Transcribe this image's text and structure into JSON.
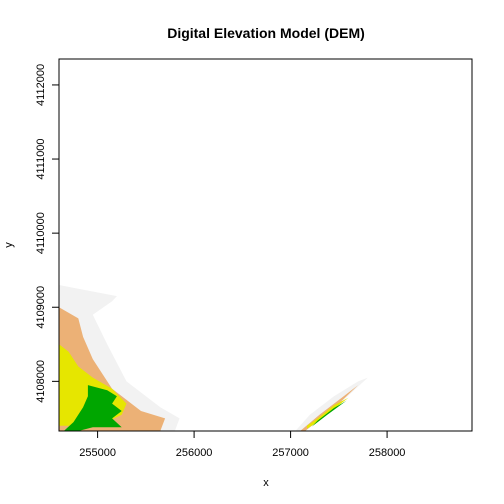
{
  "chart_data": {
    "type": "heatmap",
    "title": "Digital Elevation Model (DEM)",
    "xlabel": "x",
    "ylabel": "y",
    "xlim": [
      254600,
      258880
    ],
    "ylim": [
      4107330,
      4112350
    ],
    "x_ticks": [
      255000,
      256000,
      257000,
      258000
    ],
    "y_ticks": [
      4108000,
      4109000,
      4110000,
      4111000,
      4112000
    ],
    "x_tick_labels": [
      "255000",
      "256000",
      "257000",
      "258000"
    ],
    "y_tick_labels": [
      "4108000",
      "4109000",
      "4110000",
      "4111000",
      "4112000"
    ],
    "legend": "none",
    "elevation_classes": [
      {
        "level": 1,
        "color": "#f2f2f2"
      },
      {
        "level": 2,
        "color": "#ecb176"
      },
      {
        "level": 3,
        "color": "#e6e600"
      },
      {
        "level": 4,
        "color": "#00a600"
      }
    ],
    "regions": [
      {
        "level": 1,
        "polygon": [
          [
            254600,
            4109300
          ],
          [
            254800,
            4109250
          ],
          [
            255200,
            4109150
          ],
          [
            255150,
            4109080
          ],
          [
            254950,
            4108900
          ],
          [
            255100,
            4108500
          ],
          [
            255300,
            4108000
          ],
          [
            255650,
            4107650
          ],
          [
            255850,
            4107500
          ],
          [
            255800,
            4107330
          ],
          [
            254600,
            4107330
          ]
        ]
      },
      {
        "level": 2,
        "polygon": [
          [
            254600,
            4109000
          ],
          [
            254800,
            4108850
          ],
          [
            254850,
            4108600
          ],
          [
            254950,
            4108300
          ],
          [
            255150,
            4107900
          ],
          [
            255450,
            4107600
          ],
          [
            255700,
            4107500
          ],
          [
            255650,
            4107330
          ],
          [
            254600,
            4107330
          ]
        ]
      },
      {
        "level": 3,
        "polygon": [
          [
            254600,
            4108500
          ],
          [
            254700,
            4108400
          ],
          [
            254800,
            4108200
          ],
          [
            254950,
            4108050
          ],
          [
            255150,
            4107900
          ],
          [
            255300,
            4107700
          ],
          [
            255250,
            4107550
          ],
          [
            255050,
            4107420
          ],
          [
            254700,
            4107400
          ],
          [
            254600,
            4107400
          ]
        ]
      },
      {
        "level": 4,
        "polygon": [
          [
            254900,
            4107950
          ],
          [
            255100,
            4107880
          ],
          [
            255200,
            4107800
          ],
          [
            255150,
            4107700
          ],
          [
            255250,
            4107600
          ],
          [
            255150,
            4107500
          ],
          [
            255250,
            4107380
          ],
          [
            254950,
            4107380
          ],
          [
            254800,
            4107330
          ],
          [
            254650,
            4107330
          ],
          [
            254750,
            4107450
          ],
          [
            254850,
            4107650
          ],
          [
            254900,
            4107800
          ]
        ]
      },
      {
        "level": 1,
        "polygon": [
          [
            257130,
            4107330
          ],
          [
            257300,
            4107500
          ],
          [
            257550,
            4107750
          ],
          [
            257800,
            4108050
          ],
          [
            257700,
            4108000
          ],
          [
            257450,
            4107800
          ],
          [
            257200,
            4107550
          ],
          [
            257050,
            4107330
          ]
        ]
      },
      {
        "level": 2,
        "polygon": [
          [
            257150,
            4107330
          ],
          [
            257300,
            4107480
          ],
          [
            257500,
            4107700
          ],
          [
            257700,
            4107950
          ],
          [
            257550,
            4107800
          ],
          [
            257300,
            4107550
          ],
          [
            257100,
            4107330
          ]
        ]
      },
      {
        "level": 3,
        "polygon": [
          [
            257170,
            4107360
          ],
          [
            257300,
            4107470
          ],
          [
            257470,
            4107650
          ],
          [
            257600,
            4107780
          ],
          [
            257450,
            4107680
          ],
          [
            257280,
            4107500
          ],
          [
            257170,
            4107400
          ]
        ]
      },
      {
        "level": 4,
        "polygon": [
          [
            257220,
            4107390
          ],
          [
            257380,
            4107550
          ],
          [
            257580,
            4107740
          ],
          [
            257450,
            4107640
          ],
          [
            257280,
            4107470
          ]
        ]
      }
    ]
  }
}
